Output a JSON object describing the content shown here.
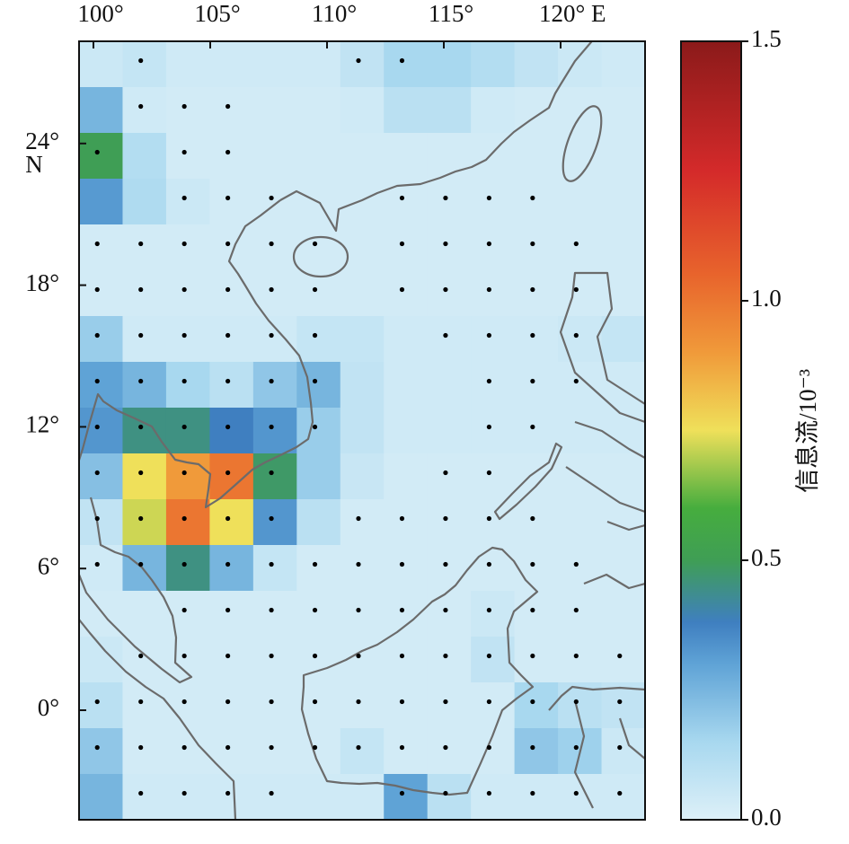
{
  "map": {
    "lon_ticks": [
      {
        "value": 100,
        "label": "100°"
      },
      {
        "value": 105,
        "label": "105°"
      },
      {
        "value": 110,
        "label": "110°"
      },
      {
        "value": 115,
        "label": "115°"
      },
      {
        "value": 120,
        "label": "120° E"
      }
    ],
    "lat_ticks": [
      {
        "value": 24,
        "label": "24°"
      },
      {
        "value": 18,
        "label": "18°"
      },
      {
        "value": 12,
        "label": "12°"
      },
      {
        "value": 6,
        "label": "6°"
      },
      {
        "value": 0,
        "label": "0°"
      }
    ],
    "lat_unit": "N",
    "grid": {
      "values": [
        [
          0.05,
          0.07,
          0.04,
          0.04,
          0.04,
          0.04,
          0.08,
          0.15,
          0.15,
          0.12,
          0.08,
          0.05,
          0.04
        ],
        [
          0.25,
          0.04,
          0.03,
          0.03,
          0.03,
          0.03,
          0.04,
          0.1,
          0.1,
          0.04,
          0.03,
          0.03,
          0.03
        ],
        [
          0.5,
          0.12,
          0.03,
          0.03,
          0.03,
          0.03,
          0.03,
          0.03,
          0.03,
          0.03,
          0.03,
          0.03,
          0.03
        ],
        [
          0.32,
          0.13,
          0.05,
          0.03,
          0.03,
          0.03,
          0.03,
          0.03,
          0.03,
          0.03,
          0.03,
          0.03,
          0.03
        ],
        [
          0.03,
          0.03,
          0.03,
          0.03,
          0.03,
          0.03,
          0.03,
          0.03,
          0.03,
          0.03,
          0.03,
          0.03,
          0.03
        ],
        [
          0.03,
          0.03,
          0.03,
          0.03,
          0.03,
          0.03,
          0.03,
          0.03,
          0.03,
          0.03,
          0.03,
          0.03,
          0.03
        ],
        [
          0.18,
          0.04,
          0.04,
          0.04,
          0.04,
          0.07,
          0.07,
          0.04,
          0.04,
          0.04,
          0.04,
          0.05,
          0.07
        ],
        [
          0.3,
          0.25,
          0.15,
          0.1,
          0.2,
          0.25,
          0.08,
          0.04,
          0.04,
          0.04,
          0.04,
          0.04,
          0.04
        ],
        [
          0.33,
          0.45,
          0.45,
          0.38,
          0.33,
          0.18,
          0.08,
          0.04,
          0.04,
          0.04,
          0.04,
          0.04,
          0.04
        ],
        [
          0.22,
          0.75,
          0.9,
          1.0,
          0.48,
          0.18,
          0.06,
          0.03,
          0.03,
          0.03,
          0.03,
          0.03,
          0.03
        ],
        [
          0.08,
          0.72,
          1.0,
          0.75,
          0.33,
          0.1,
          0.03,
          0.03,
          0.03,
          0.03,
          0.03,
          0.03,
          0.03
        ],
        [
          0.04,
          0.25,
          0.45,
          0.25,
          0.07,
          0.03,
          0.03,
          0.03,
          0.03,
          0.03,
          0.03,
          0.03,
          0.03
        ],
        [
          0.03,
          0.03,
          0.03,
          0.03,
          0.03,
          0.03,
          0.03,
          0.03,
          0.03,
          0.05,
          0.03,
          0.03,
          0.03
        ],
        [
          0.05,
          0.03,
          0.03,
          0.03,
          0.03,
          0.03,
          0.03,
          0.03,
          0.03,
          0.08,
          0.03,
          0.03,
          0.03
        ],
        [
          0.1,
          0.03,
          0.03,
          0.03,
          0.03,
          0.03,
          0.03,
          0.03,
          0.03,
          0.03,
          0.15,
          0.1,
          0.08
        ],
        [
          0.2,
          0.03,
          0.03,
          0.03,
          0.03,
          0.03,
          0.07,
          0.03,
          0.03,
          0.03,
          0.2,
          0.17,
          0.05
        ],
        [
          0.25,
          0.04,
          0.04,
          0.04,
          0.04,
          0.04,
          0.04,
          0.3,
          0.1,
          0.04,
          0.04,
          0.04,
          0.04
        ]
      ],
      "significant": [
        [
          0,
          1,
          0,
          0,
          0,
          0,
          1,
          1,
          0,
          0,
          0,
          0,
          0
        ],
        [
          0,
          1,
          1,
          1,
          0,
          0,
          0,
          0,
          0,
          0,
          0,
          0,
          0
        ],
        [
          1,
          0,
          1,
          1,
          0,
          0,
          0,
          0,
          0,
          0,
          0,
          0,
          0
        ],
        [
          0,
          0,
          1,
          1,
          1,
          0,
          0,
          1,
          1,
          1,
          1,
          0,
          0
        ],
        [
          1,
          1,
          1,
          1,
          1,
          1,
          0,
          1,
          1,
          1,
          1,
          1,
          0
        ],
        [
          1,
          1,
          1,
          1,
          1,
          1,
          0,
          1,
          1,
          1,
          1,
          1,
          0
        ],
        [
          1,
          1,
          1,
          1,
          1,
          1,
          0,
          0,
          1,
          1,
          1,
          1,
          0
        ],
        [
          1,
          1,
          1,
          1,
          1,
          1,
          0,
          0,
          0,
          1,
          1,
          1,
          0
        ],
        [
          1,
          1,
          1,
          1,
          1,
          1,
          0,
          0,
          0,
          1,
          1,
          0,
          0
        ],
        [
          1,
          1,
          1,
          1,
          1,
          0,
          0,
          0,
          1,
          1,
          0,
          0,
          0
        ],
        [
          1,
          1,
          1,
          1,
          1,
          0,
          1,
          1,
          1,
          1,
          1,
          0,
          0
        ],
        [
          1,
          1,
          1,
          1,
          1,
          1,
          1,
          1,
          1,
          1,
          1,
          1,
          0
        ],
        [
          0,
          0,
          1,
          1,
          1,
          1,
          1,
          1,
          1,
          1,
          1,
          1,
          0
        ],
        [
          0,
          1,
          1,
          1,
          1,
          1,
          1,
          1,
          1,
          1,
          1,
          1,
          1
        ],
        [
          1,
          1,
          1,
          1,
          1,
          1,
          1,
          1,
          1,
          1,
          1,
          1,
          1
        ],
        [
          1,
          1,
          1,
          1,
          1,
          1,
          1,
          1,
          1,
          1,
          1,
          1,
          1
        ],
        [
          0,
          1,
          1,
          1,
          1,
          0,
          0,
          1,
          1,
          1,
          1,
          1,
          1
        ]
      ]
    },
    "colorbar": {
      "label": "信息流/10⁻³",
      "clim": [
        0,
        1.5
      ],
      "ticks": [
        {
          "value": 0,
          "label": "0.0"
        },
        {
          "value": 0.5,
          "label": "0.5"
        },
        {
          "value": 1.0,
          "label": "1.0"
        },
        {
          "value": 1.5,
          "label": "1.5"
        }
      ],
      "colormap": [
        [
          0,
          "#ddf0f8"
        ],
        [
          0.15,
          "#a8d8ef"
        ],
        [
          0.3,
          "#5fa3d6"
        ],
        [
          0.38,
          "#3f7fc0"
        ],
        [
          0.5,
          "#3f9e55"
        ],
        [
          0.6,
          "#46ad3e"
        ],
        [
          0.75,
          "#efe05a"
        ],
        [
          0.9,
          "#f09a3a"
        ],
        [
          1.05,
          "#e8642c"
        ],
        [
          1.25,
          "#d42a2a"
        ],
        [
          1.5,
          "#8b1a1a"
        ]
      ]
    }
  }
}
